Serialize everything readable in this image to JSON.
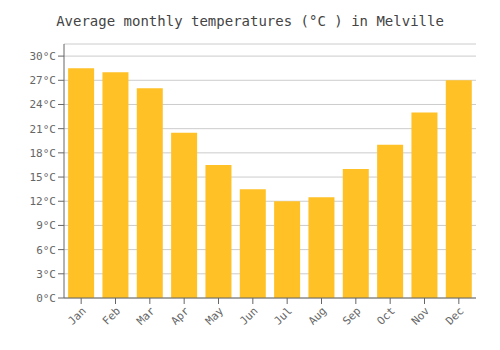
{
  "chart_data": {
    "type": "bar",
    "title": "Average monthly temperatures (°C ) in Melville",
    "categories": [
      "Jan",
      "Feb",
      "Mar",
      "Apr",
      "May",
      "Jun",
      "Jul",
      "Aug",
      "Sep",
      "Oct",
      "Nov",
      "Dec"
    ],
    "values": [
      28.5,
      28.0,
      26.0,
      20.5,
      16.5,
      13.5,
      12.0,
      12.5,
      16.0,
      19.0,
      23.0,
      27.0
    ],
    "color": "#FFC125",
    "ylim": [
      0,
      31.5
    ],
    "yticks": [
      {
        "value": 0,
        "label": "0°C"
      },
      {
        "value": 3,
        "label": "3°C"
      },
      {
        "value": 6,
        "label": "6°C"
      },
      {
        "value": 9,
        "label": "9°C"
      },
      {
        "value": 12,
        "label": "12°C"
      },
      {
        "value": 15,
        "label": "15°C"
      },
      {
        "value": 18,
        "label": "18°C"
      },
      {
        "value": 21,
        "label": "21°C"
      },
      {
        "value": 24,
        "label": "24°C"
      },
      {
        "value": 27,
        "label": "27°C"
      },
      {
        "value": 30,
        "label": "30°C"
      }
    ],
    "grid": true
  }
}
